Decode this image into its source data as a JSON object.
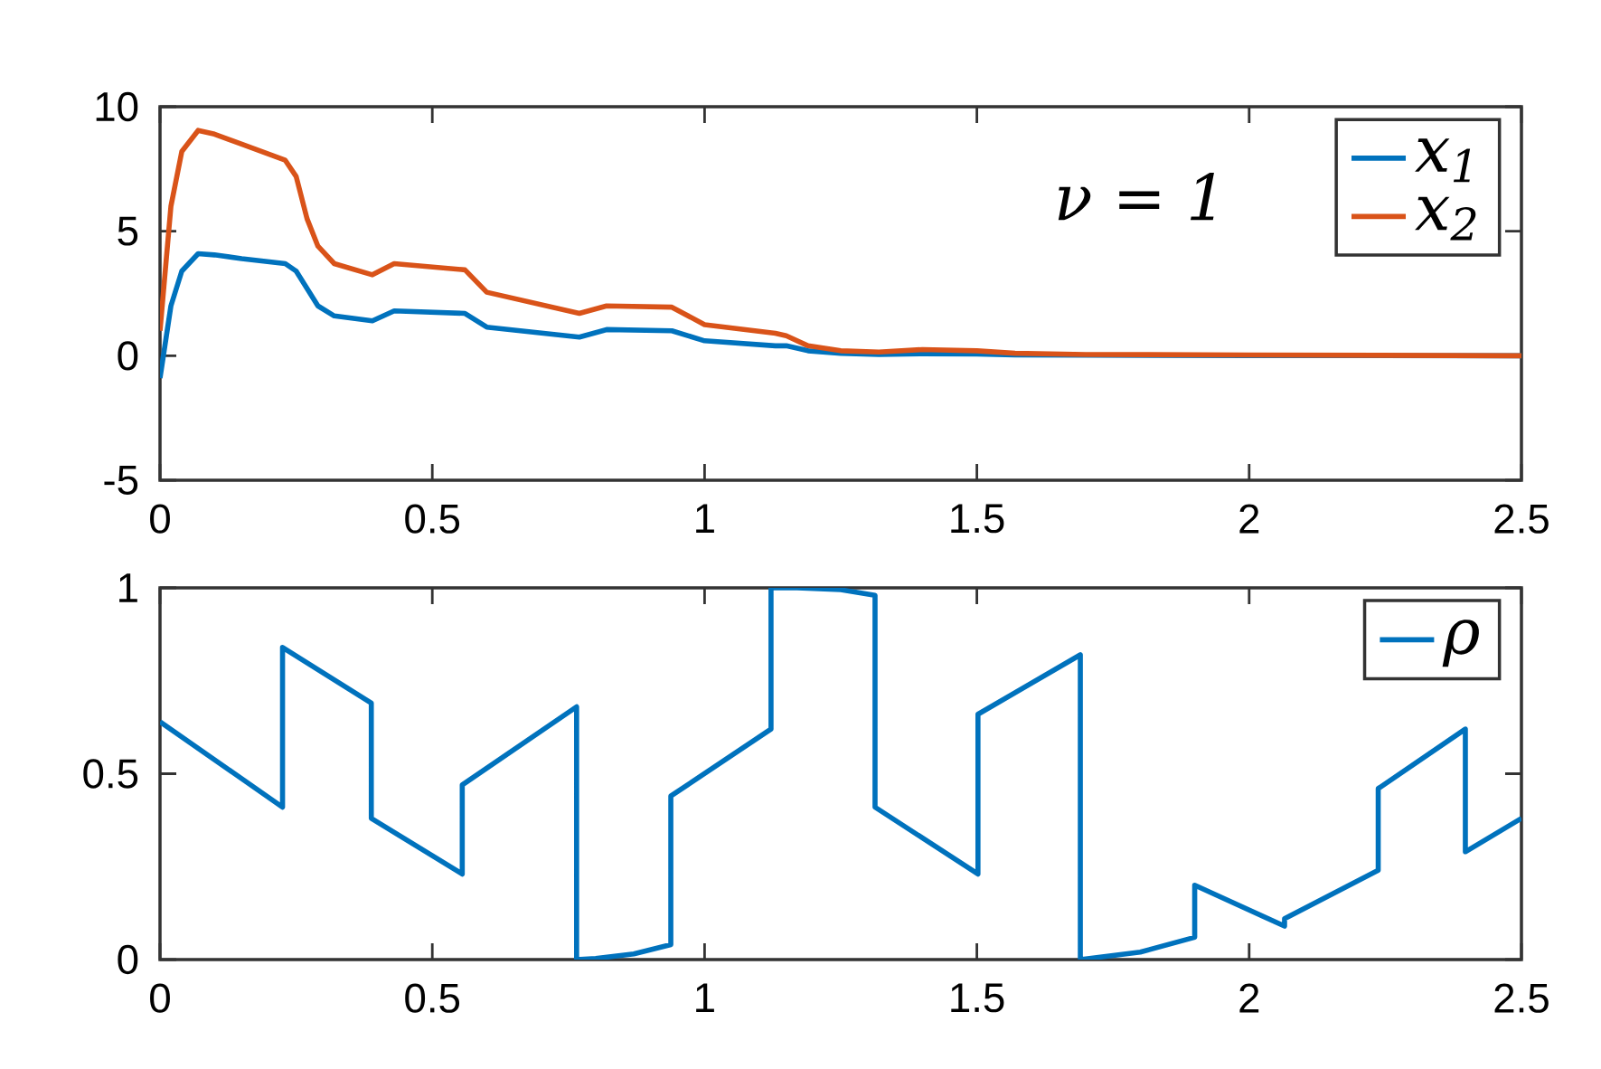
{
  "chart_data": [
    {
      "type": "line",
      "x": [
        0,
        0.02,
        0.04,
        0.07,
        0.1,
        0.15,
        0.23,
        0.25,
        0.27,
        0.29,
        0.32,
        0.39,
        0.43,
        0.56,
        0.6,
        0.77,
        0.82,
        0.94,
        1.0,
        1.13,
        1.15,
        1.19,
        1.25,
        1.32,
        1.4,
        1.5,
        1.57,
        1.7,
        2.0,
        2.5
      ],
      "series": [
        {
          "name": "x$_{1}$",
          "color": "#0072bd",
          "values": [
            -0.9,
            2.0,
            3.4,
            4.1,
            4.05,
            3.9,
            3.7,
            3.4,
            2.7,
            2.0,
            1.6,
            1.4,
            1.8,
            1.7,
            1.15,
            0.75,
            1.05,
            1.0,
            0.6,
            0.4,
            0.4,
            0.2,
            0.1,
            0.05,
            0.08,
            0.07,
            0.03,
            0.02,
            0.01,
            0
          ]
        },
        {
          "name": "x$_{2}$",
          "color": "#d95319",
          "values": [
            1.0,
            6.0,
            8.2,
            9.05,
            8.9,
            8.5,
            7.85,
            7.2,
            5.5,
            4.4,
            3.7,
            3.25,
            3.7,
            3.45,
            2.55,
            1.7,
            2.0,
            1.95,
            1.25,
            0.9,
            0.8,
            0.4,
            0.2,
            0.15,
            0.25,
            0.2,
            0.1,
            0.05,
            0.03,
            0
          ]
        }
      ],
      "xlim": [
        0,
        2.5
      ],
      "ylim": [
        -5,
        10
      ],
      "xticks": [
        0,
        0.5,
        1,
        1.5,
        2,
        2.5
      ],
      "yticks": [
        -5,
        0,
        5,
        10
      ],
      "legend": "top right",
      "annotations": [
        "ν = 1"
      ]
    },
    {
      "type": "line",
      "x": [
        0,
        0.225,
        0.225,
        0.388,
        0.388,
        0.555,
        0.555,
        0.765,
        0.765,
        0.8,
        0.87,
        0.938,
        0.938,
        1.122,
        1.122,
        1.17,
        1.25,
        1.313,
        1.313,
        1.502,
        1.502,
        1.69,
        1.69,
        1.8,
        1.9,
        1.9,
        2.065,
        2.065,
        2.237,
        2.237,
        2.397,
        2.397,
        2.5
      ],
      "series": [
        {
          "name": "ρ",
          "color": "#0072bd",
          "values": [
            0.64,
            0.41,
            0.84,
            0.69,
            0.38,
            0.23,
            0.47,
            0.68,
            0,
            0.003,
            0.015,
            0.04,
            0.44,
            0.62,
            1.0,
            1.0,
            0.995,
            0.98,
            0.41,
            0.23,
            0.66,
            0.82,
            0,
            0.02,
            0.06,
            0.2,
            0.09,
            0.11,
            0.24,
            0.46,
            0.62,
            0.29,
            0.38
          ]
        }
      ],
      "xlim": [
        0,
        2.5
      ],
      "ylim": [
        0,
        1
      ],
      "xticks": [
        0,
        0.5,
        1,
        1.5,
        2,
        2.5
      ],
      "yticks": [
        0,
        0.5,
        1
      ],
      "legend": "top right"
    }
  ]
}
